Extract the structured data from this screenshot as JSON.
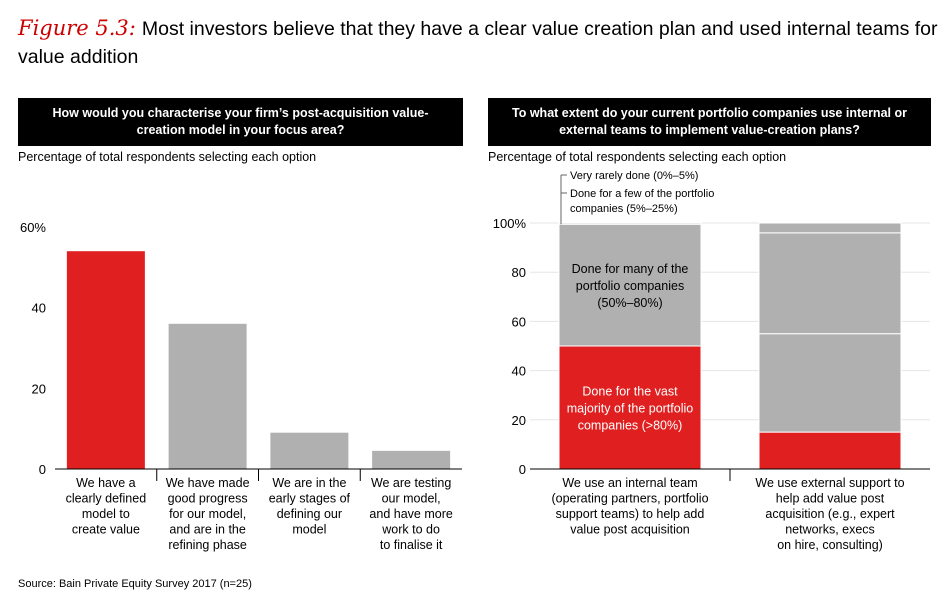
{
  "figure": {
    "label": "Figure 5.3:",
    "title": "Most investors believe that they have a clear value creation plan and used internal teams for value addition"
  },
  "source": "Source: Bain Private Equity Survey 2017 (n=25)",
  "chart_data": [
    {
      "type": "bar",
      "title": "How would you characterise your firm’s post-acquisition value-creation model in your focus area?",
      "subtitle": "Percentage of total respondents selecting each option",
      "ylim": [
        0,
        60
      ],
      "yticks": [
        "0",
        "20",
        "40",
        "60%"
      ],
      "ytick_values": [
        0,
        20,
        40,
        60
      ],
      "categories": [
        [
          "We have a",
          "clearly defined",
          "model to",
          "create value"
        ],
        [
          "We have made",
          "good progress",
          "for our model,",
          "and are in the",
          "refining phase"
        ],
        [
          "We are in the",
          "early stages of",
          "defining our",
          "model"
        ],
        [
          "We are testing",
          "our model,",
          "and have more",
          "work to do",
          "to finalise it"
        ]
      ],
      "values": [
        54,
        36,
        9,
        4.5
      ],
      "colors": [
        "#e02020",
        "#b0b0b0",
        "#b0b0b0",
        "#b0b0b0"
      ]
    },
    {
      "type": "bar",
      "stacked": true,
      "title": "To what extent do your current portfolio companies use internal or external teams to implement value-creation plans?",
      "subtitle": "Percentage of total respondents selecting each option",
      "ylim": [
        0,
        100
      ],
      "yticks": [
        "0",
        "20",
        "40",
        "60",
        "80",
        "100%"
      ],
      "ytick_values": [
        0,
        20,
        40,
        60,
        80,
        100
      ],
      "categories": [
        [
          "We use an internal team",
          "(operating partners, portfolio",
          "support teams) to help add",
          "value post acquisition"
        ],
        [
          "We use external support to",
          "help add value post",
          "acquisition (e.g., expert",
          "networks, execs",
          "on hire, consulting)"
        ]
      ],
      "series": [
        {
          "name": "Done for the vast majority of the portfolio companies (>80%)",
          "label_lines": [
            "Done for the vast",
            "majority of the portfolio",
            "companies (>80%)"
          ],
          "color": "#e02020",
          "values": [
            50,
            15
          ]
        },
        {
          "name": "Done for many of the portfolio companies (50%–80%)",
          "label_lines": [
            "Done for many of the",
            "portfolio companies",
            "(50%–80%)"
          ],
          "color": "#b0b0b0",
          "values": [
            49.5,
            40
          ]
        },
        {
          "name": "Done for a few of the portfolio companies (5%–25%)",
          "label_lines": [
            "Done for a few of the portfolio",
            "companies (5%–25%)"
          ],
          "color": "#b0b0b0",
          "values": [
            0.5,
            41
          ]
        },
        {
          "name": "Very rarely done (0%–5%)",
          "label_lines": [
            "Very rarely done (0%–5%)"
          ],
          "color": "#b0b0b0",
          "values": [
            0,
            4
          ]
        }
      ]
    }
  ]
}
